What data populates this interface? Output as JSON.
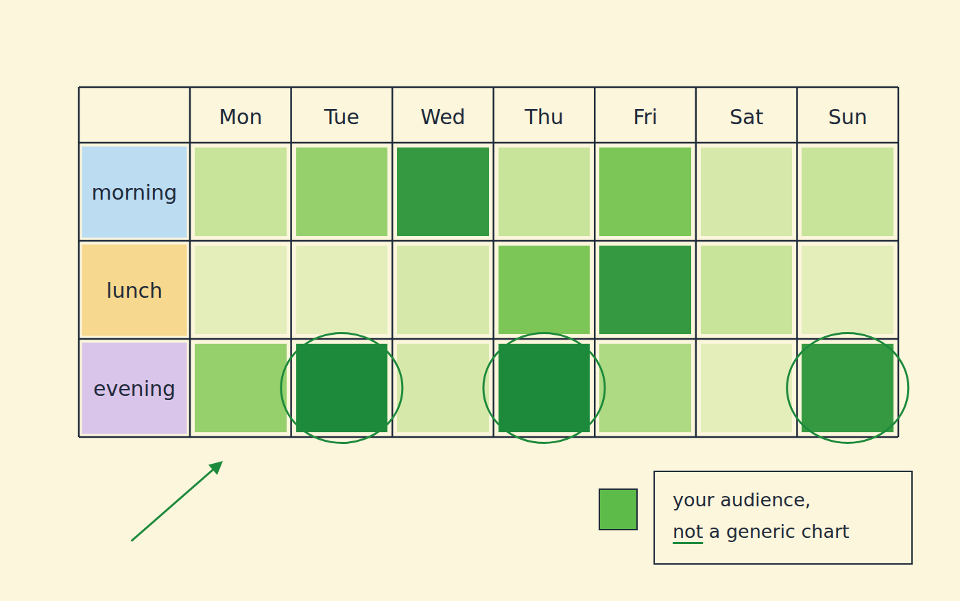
{
  "chart_data": {
    "type": "heatmap",
    "x": [
      "Mon",
      "Tue",
      "Wed",
      "Thu",
      "Fri",
      "Sat",
      "Sun"
    ],
    "y": [
      "morning",
      "lunch",
      "evening"
    ],
    "cells": [
      [
        3,
        5,
        9,
        3,
        6,
        2,
        3
      ],
      [
        1,
        1,
        2,
        6,
        9,
        3,
        1
      ],
      [
        5,
        10,
        2,
        10,
        4,
        1,
        9
      ]
    ],
    "zlim": [
      0,
      10
    ],
    "highlights": [
      {
        "x": "Tue",
        "y": "evening"
      },
      {
        "x": "Thu",
        "y": "evening"
      },
      {
        "x": "Sun",
        "y": "evening"
      }
    ],
    "note": [
      "your audience,",
      "not a generic chart"
    ]
  }
}
